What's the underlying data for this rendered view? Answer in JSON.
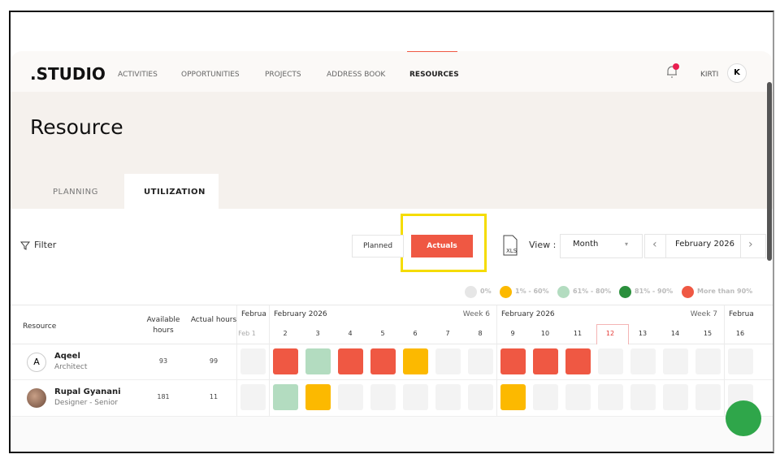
{
  "nav": {
    "logo": ".STUDIO",
    "items": [
      "ACTIVITIES",
      "OPPORTUNITIES",
      "PROJECTS",
      "ADDRESS BOOK",
      "RESOURCES"
    ],
    "active": 4,
    "user": "KIRTI",
    "avatar": "K"
  },
  "header": {
    "title": "Resource",
    "tabs": [
      "PLANNING",
      "UTILIZATION"
    ],
    "active_tab": 1
  },
  "toolbar": {
    "filter": "Filter",
    "toggle": [
      "Planned",
      "Actuals"
    ],
    "active_toggle": 1,
    "export": "XLS",
    "view_label": "View :",
    "view": "Month",
    "period": "February 2026"
  },
  "legend": [
    {
      "label": "0%",
      "color": "#e6e6e6"
    },
    {
      "label": "1% - 60%",
      "color": "#fcb900"
    },
    {
      "label": "61% - 80%",
      "color": "#b3dcc0"
    },
    {
      "label": "81% - 90%",
      "color": "#2a8f3c"
    },
    {
      "label": "More than 90%",
      "color": "#ef5843"
    }
  ],
  "table": {
    "columns": [
      "Resource",
      "Available hours",
      "Actual hours"
    ],
    "groups": [
      {
        "label": "February",
        "days": [
          "Feb 1"
        ]
      },
      {
        "label": "February 2026",
        "week": "Week 6",
        "days": [
          2,
          3,
          4,
          5,
          6,
          7,
          8
        ]
      },
      {
        "label": "February 2026",
        "week": "Week 7",
        "days": [
          9,
          10,
          11,
          12,
          13,
          14,
          15
        ],
        "today": 3
      },
      {
        "label": "February",
        "days": [
          16
        ]
      }
    ],
    "rows": [
      {
        "name": "Aqeel",
        "role": "Architect",
        "avatar": "A",
        "available": 93,
        "actual": 99,
        "cells": [
          "#f3f3f3",
          "#ef5843",
          "#b3dcc0",
          "#ef5843",
          "#ef5843",
          "#fcb900",
          "#f3f3f3",
          "#f3f3f3",
          "#ef5843",
          "#ef5843",
          "#ef5843",
          "#f3f3f3",
          "#f3f3f3",
          "#f3f3f3",
          "#f3f3f3",
          "#f3f3f3"
        ]
      },
      {
        "name": "Rupal Gyanani",
        "role": "Designer - Senior",
        "available": 181,
        "actual": 11,
        "cells": [
          "#f3f3f3",
          "#b3dcc0",
          "#fcb900",
          "#f3f3f3",
          "#f3f3f3",
          "#f3f3f3",
          "#f3f3f3",
          "#f3f3f3",
          "#fcb900",
          "#f3f3f3",
          "#f3f3f3",
          "#f3f3f3",
          "#f3f3f3",
          "#f3f3f3",
          "#f3f3f3",
          "#f3f3f3"
        ]
      }
    ]
  }
}
